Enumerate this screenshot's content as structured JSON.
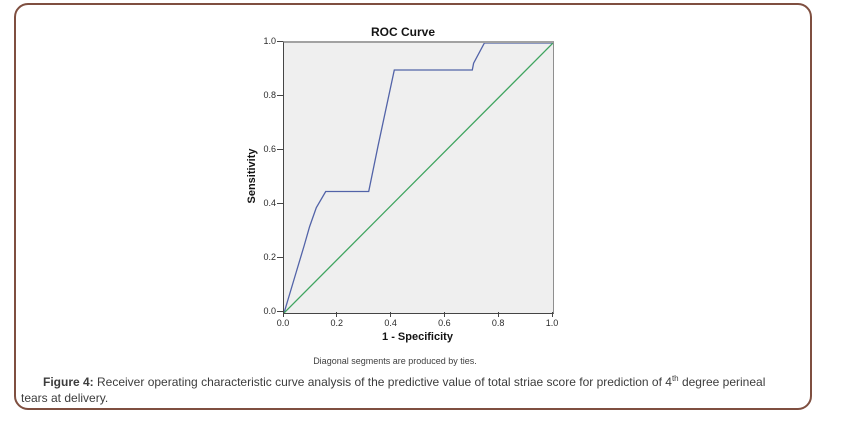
{
  "figure": {
    "border_color": "#7f4f40"
  },
  "chart_data": {
    "type": "line",
    "title": "ROC Curve",
    "xlabel": "1 - Specificity",
    "ylabel": "Sensitivity",
    "xlim": [
      0.0,
      1.0
    ],
    "ylim": [
      0.0,
      1.0
    ],
    "xticks": [
      "0.0",
      "0.2",
      "0.4",
      "0.6",
      "0.8",
      "1.0"
    ],
    "yticks": [
      "0.0",
      "0.2",
      "0.4",
      "0.6",
      "0.8",
      "1.0"
    ],
    "grid": false,
    "legend": "none",
    "plot_background": "#efefef",
    "footnote": "Diagonal segments are produced by ties.",
    "series": [
      {
        "name": "roc-curve",
        "color": "#5263a8",
        "points": [
          [
            0,
            0
          ],
          [
            0.045,
            0.15
          ],
          [
            0.075,
            0.25
          ],
          [
            0.095,
            0.32
          ],
          [
            0.12,
            0.39
          ],
          [
            0.155,
            0.45
          ],
          [
            0.315,
            0.45
          ],
          [
            0.35,
            0.62
          ],
          [
            0.41,
            0.9
          ],
          [
            0.7,
            0.9
          ],
          [
            0.705,
            0.925
          ],
          [
            0.745,
            1.0
          ],
          [
            1.0,
            1.0
          ]
        ]
      },
      {
        "name": "reference-line",
        "color": "#3fa45f",
        "points": [
          [
            0,
            0
          ],
          [
            1.0,
            1.0
          ]
        ]
      }
    ]
  },
  "caption": {
    "label": "Figure 4:",
    "text_before_sup": " Receiver operating characteristic curve analysis of the predictive value of total striae score for prediction of 4",
    "superscript": "th",
    "text_after_sup": " degree perineal tears at delivery."
  }
}
